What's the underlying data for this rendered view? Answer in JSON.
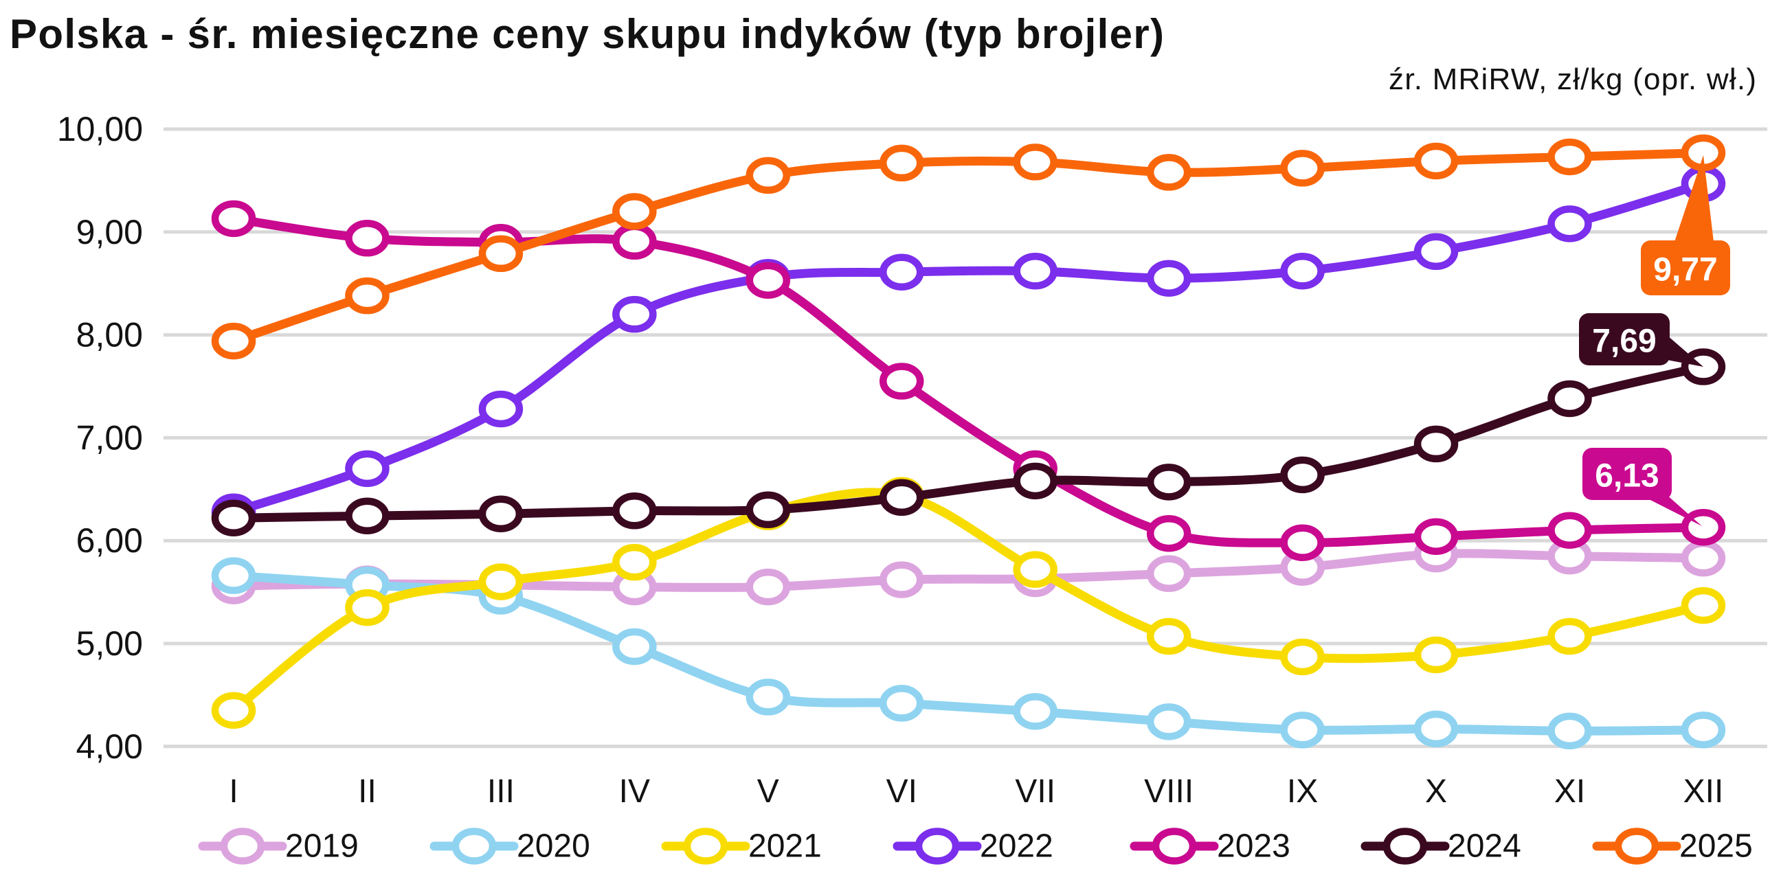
{
  "title": "Polska - śr. miesięczne ceny skupu indyków (typ brojler)",
  "source_note": "źr. MRiRW, zł/kg (opr. wł.)",
  "chart_data": {
    "type": "line",
    "categories": [
      "I",
      "II",
      "III",
      "IV",
      "V",
      "VI",
      "VII",
      "VIII",
      "IX",
      "X",
      "XI",
      "XII"
    ],
    "ylabel": "zł/kg",
    "ylim": [
      4.0,
      10.0
    ],
    "grid": true,
    "legend_position": "bottom",
    "yticks": [
      {
        "value": 10.0,
        "label": "10,00"
      },
      {
        "value": 9.0,
        "label": "9,00"
      },
      {
        "value": 8.0,
        "label": "8,00"
      },
      {
        "value": 7.0,
        "label": "7,00"
      },
      {
        "value": 6.0,
        "label": "6,00"
      },
      {
        "value": 5.0,
        "label": "5,00"
      },
      {
        "value": 4.0,
        "label": "4,00"
      }
    ],
    "series": [
      {
        "name": "2019",
        "color": "#DCA4DE",
        "values": [
          5.56,
          5.58,
          5.57,
          5.55,
          5.55,
          5.62,
          5.63,
          5.68,
          5.74,
          5.87,
          5.85,
          5.83
        ]
      },
      {
        "name": "2020",
        "color": "#8FD3F1",
        "values": [
          5.66,
          5.57,
          5.46,
          4.97,
          4.48,
          4.42,
          4.34,
          4.24,
          4.16,
          4.17,
          4.15,
          4.16
        ]
      },
      {
        "name": "2021",
        "color": "#F8DC00",
        "values": [
          4.35,
          5.35,
          5.6,
          5.79,
          6.28,
          6.44,
          5.72,
          5.07,
          4.87,
          4.89,
          5.07,
          5.37
        ]
      },
      {
        "name": "2022",
        "color": "#7B2EEC",
        "values": [
          6.28,
          6.7,
          7.28,
          8.2,
          8.56,
          8.61,
          8.62,
          8.55,
          8.62,
          8.81,
          9.08,
          9.47
        ]
      },
      {
        "name": "2023",
        "color": "#C9098F",
        "values": [
          9.13,
          8.94,
          8.9,
          8.91,
          8.53,
          7.55,
          6.7,
          6.07,
          5.98,
          6.04,
          6.1,
          6.13
        ]
      },
      {
        "name": "2024",
        "color": "#3A0920",
        "values": [
          6.22,
          6.24,
          6.26,
          6.29,
          6.3,
          6.42,
          6.58,
          6.57,
          6.64,
          6.94,
          7.38,
          7.69
        ]
      },
      {
        "name": "2025",
        "color": "#F9660A",
        "values": [
          7.94,
          8.38,
          8.79,
          9.2,
          9.55,
          9.67,
          9.68,
          9.58,
          9.62,
          9.69,
          9.73,
          9.77
        ]
      }
    ],
    "callouts": [
      {
        "series": "2025",
        "category": "XII",
        "label": "9,77",
        "text_color": "#ffffff"
      },
      {
        "series": "2024",
        "category": "XII",
        "label": "7,69",
        "text_color": "#ffffff"
      },
      {
        "series": "2023",
        "category": "XII",
        "label": "6,13",
        "text_color": "#ffffff"
      }
    ],
    "grid_color": "#D9D9D9"
  }
}
